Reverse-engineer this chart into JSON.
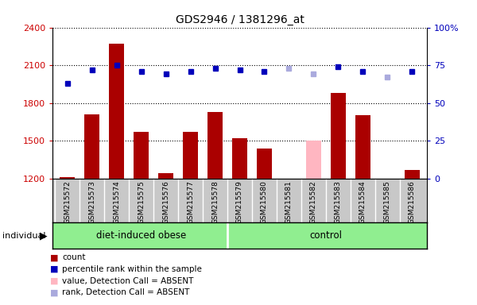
{
  "title": "GDS2946 / 1381296_at",
  "samples": [
    "GSM215572",
    "GSM215573",
    "GSM215574",
    "GSM215575",
    "GSM215576",
    "GSM215577",
    "GSM215578",
    "GSM215579",
    "GSM215580",
    "GSM215581",
    "GSM215582",
    "GSM215583",
    "GSM215584",
    "GSM215585",
    "GSM215586"
  ],
  "counts": [
    1210,
    1710,
    2270,
    1570,
    1240,
    1570,
    1730,
    1520,
    1440,
    1200,
    1500,
    1880,
    1700,
    1190,
    1270
  ],
  "ranks_pct": [
    63,
    72,
    75,
    71,
    69,
    71,
    73,
    72,
    71,
    73,
    69,
    74,
    71,
    67,
    71
  ],
  "absent_mask": [
    false,
    false,
    false,
    false,
    false,
    false,
    false,
    false,
    false,
    true,
    true,
    false,
    false,
    true,
    false
  ],
  "n_obese": 7,
  "bar_color_present": "#AA0000",
  "bar_color_absent": "#FFB6C1",
  "rank_color_present": "#0000BB",
  "rank_color_absent": "#AAAADD",
  "ylim_left": [
    1200,
    2400
  ],
  "ylim_right": [
    0,
    100
  ],
  "yticks_left": [
    1200,
    1500,
    1800,
    2100,
    2400
  ],
  "yticks_right": [
    0,
    25,
    50,
    75,
    100
  ],
  "label_bg_color": "#C8C8C8",
  "label_sep_color": "#FFFFFF",
  "group_bg_color": "#90EE90",
  "legend_items": [
    {
      "label": "count",
      "color": "#AA0000"
    },
    {
      "label": "percentile rank within the sample",
      "color": "#0000BB"
    },
    {
      "label": "value, Detection Call = ABSENT",
      "color": "#FFB6C1"
    },
    {
      "label": "rank, Detection Call = ABSENT",
      "color": "#AAAADD"
    }
  ],
  "individual_label": "individual"
}
